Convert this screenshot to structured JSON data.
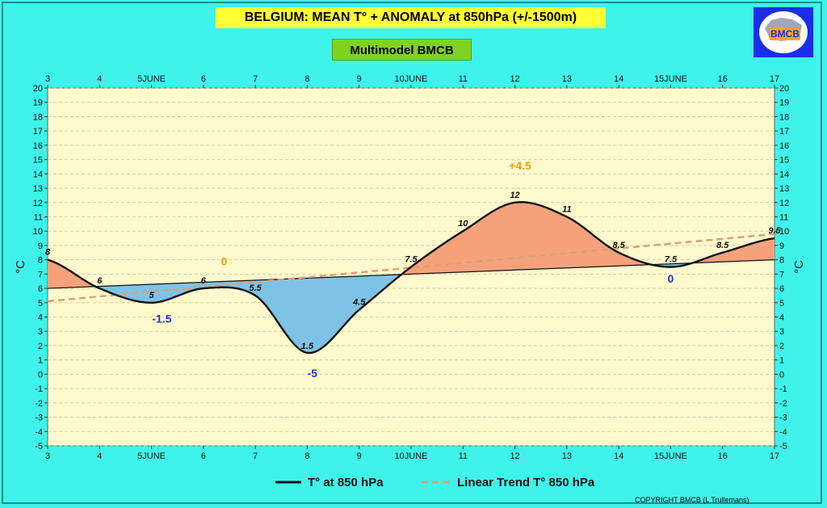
{
  "header": {
    "title": "BELGIUM:  MEAN T° + ANOMALY at 850hPa (+/-1500m)",
    "subtitle": "Multimodel BMCB",
    "logo_text": "BMCB"
  },
  "footer": {
    "copyright": "COPYRIGHT BMCB (L Trullemans)"
  },
  "colors": {
    "background": "#3ff3ea",
    "plot_bg": "#fffacd",
    "title_bg": "#ffff33",
    "subtitle_bg": "#7ed321",
    "positive_fill": "#f5a27c",
    "negative_fill": "#7ec3e6",
    "temperature_line": "#111111",
    "trend_line": "#d9a27a",
    "positive_label": "#f39c12",
    "negative_label": "#2233cc"
  },
  "chart_data": {
    "type": "area",
    "ylabel": "°C",
    "ylim": [
      -5,
      20
    ],
    "y_ticks": [
      -5,
      -4,
      -3,
      -2,
      -1,
      0,
      1,
      2,
      3,
      4,
      5,
      6,
      7,
      8,
      9,
      10,
      11,
      12,
      13,
      14,
      15,
      16,
      17,
      18,
      19,
      20
    ],
    "xlim": [
      3,
      17
    ],
    "x_ticks": [
      {
        "x": 3,
        "label": "3"
      },
      {
        "x": 4,
        "label": "4"
      },
      {
        "x": 5,
        "label": "5JUNE"
      },
      {
        "x": 6,
        "label": "6"
      },
      {
        "x": 7,
        "label": "7"
      },
      {
        "x": 8,
        "label": "8"
      },
      {
        "x": 9,
        "label": "9"
      },
      {
        "x": 10,
        "label": "10JUNE"
      },
      {
        "x": 11,
        "label": "11"
      },
      {
        "x": 12,
        "label": "12"
      },
      {
        "x": 13,
        "label": "13"
      },
      {
        "x": 14,
        "label": "14"
      },
      {
        "x": 15,
        "label": "15JUNE"
      },
      {
        "x": 16,
        "label": "16"
      },
      {
        "x": 17,
        "label": "17"
      }
    ],
    "grid": true,
    "legend_position": "bottom-center",
    "series": [
      {
        "name": "T° at 850 hPa",
        "points": [
          {
            "x": 3,
            "y": 8,
            "label": "8"
          },
          {
            "x": 4,
            "y": 6,
            "label": "6"
          },
          {
            "x": 5,
            "y": 5,
            "label": "5"
          },
          {
            "x": 6,
            "y": 6,
            "label": "6"
          },
          {
            "x": 7,
            "y": 5.5,
            "label": "5.5"
          },
          {
            "x": 8,
            "y": 1.5,
            "label": "1.5"
          },
          {
            "x": 9,
            "y": 4.5,
            "label": "4.5"
          },
          {
            "x": 10,
            "y": 7.5,
            "label": "7.5"
          },
          {
            "x": 11,
            "y": 10,
            "label": "10"
          },
          {
            "x": 12,
            "y": 12,
            "label": "12"
          },
          {
            "x": 13,
            "y": 11,
            "label": "11"
          },
          {
            "x": 14,
            "y": 8.5,
            "label": "8.5"
          },
          {
            "x": 15,
            "y": 7.5,
            "label": "7.5"
          },
          {
            "x": 16,
            "y": 8.5,
            "label": "8.5"
          },
          {
            "x": 17,
            "y": 9.5,
            "label": "9.5"
          }
        ]
      },
      {
        "name": "Linear Trend T° 850 hPa",
        "line_start": {
          "x": 3,
          "y": 5.1
        },
        "line_end": {
          "x": 17,
          "y": 9.8
        }
      }
    ],
    "normal_line": {
      "start": {
        "x": 3,
        "y": 6.0
      },
      "end": {
        "x": 17,
        "y": 8.0
      }
    },
    "anomaly_labels": [
      {
        "x": 5.2,
        "y": 3.6,
        "text": "-1.5",
        "sign": "negative"
      },
      {
        "x": 6.4,
        "y": 7.6,
        "text": "0",
        "sign": "positive"
      },
      {
        "x": 8.1,
        "y": -0.2,
        "text": "-5",
        "sign": "negative"
      },
      {
        "x": 12.1,
        "y": 14.3,
        "text": "+4.5",
        "sign": "positive"
      },
      {
        "x": 15.0,
        "y": 6.4,
        "text": "0",
        "sign": "negative"
      }
    ]
  }
}
